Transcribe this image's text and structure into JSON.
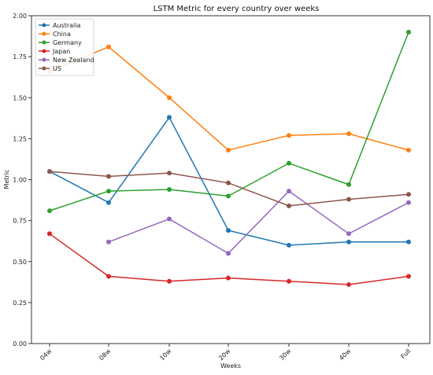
{
  "chart_data": {
    "type": "line",
    "title": "LSTM Metric for every country over weeks",
    "xlabel": "Weeks",
    "ylabel": "Metric",
    "categories": [
      "04w",
      "08w",
      "10w",
      "20w",
      "30w",
      "40w",
      "Full"
    ],
    "ylim": [
      0.0,
      2.0
    ],
    "yticks": [
      "0.00",
      "0.25",
      "0.50",
      "0.75",
      "1.00",
      "1.25",
      "1.50",
      "1.75",
      "2.00"
    ],
    "grid": false,
    "legend_position": "top-left",
    "series": [
      {
        "name": "Australia",
        "color": "#1f77b4",
        "values": [
          1.05,
          0.86,
          1.38,
          0.69,
          0.6,
          0.62,
          0.62
        ]
      },
      {
        "name": "China",
        "color": "#ff7f0e",
        "values": [
          1.66,
          1.81,
          1.5,
          1.18,
          1.27,
          1.28,
          1.18
        ]
      },
      {
        "name": "Germany",
        "color": "#2ca02c",
        "values": [
          0.81,
          0.93,
          0.94,
          0.9,
          1.1,
          0.97,
          1.9
        ]
      },
      {
        "name": "Japan",
        "color": "#d62728",
        "values": [
          0.67,
          0.41,
          0.38,
          0.4,
          0.38,
          0.36,
          0.41
        ]
      },
      {
        "name": "New Zealand",
        "color": "#9467bd",
        "values": [
          null,
          0.62,
          0.76,
          0.55,
          0.93,
          0.67,
          0.86
        ]
      },
      {
        "name": "US",
        "color": "#8c564b",
        "values": [
          1.05,
          1.02,
          1.04,
          0.98,
          0.84,
          0.88,
          0.91
        ]
      }
    ]
  }
}
